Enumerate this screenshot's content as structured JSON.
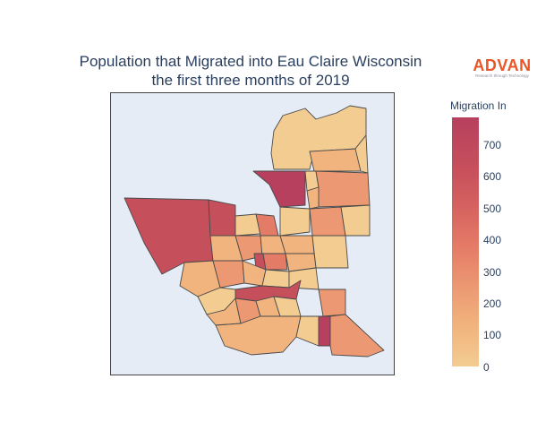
{
  "title": {
    "line1": "Population that Migrated into Eau Claire Wisconsin",
    "line2": "the first three months of 2019"
  },
  "logo": {
    "main": "ADVAN",
    "sub": "Research through Technology"
  },
  "colorbar": {
    "title": "Migration In",
    "ticks": [
      "0",
      "100",
      "200",
      "300",
      "400",
      "500",
      "600",
      "700"
    ],
    "scale": [
      "#f3cc92",
      "#ec9872",
      "#e47b67",
      "#c64f5c",
      "#b6405e"
    ],
    "range": [
      0,
      790
    ]
  },
  "colors": {
    "map_background": "#e5ecf6",
    "boundary": "#4a4a4a"
  }
}
